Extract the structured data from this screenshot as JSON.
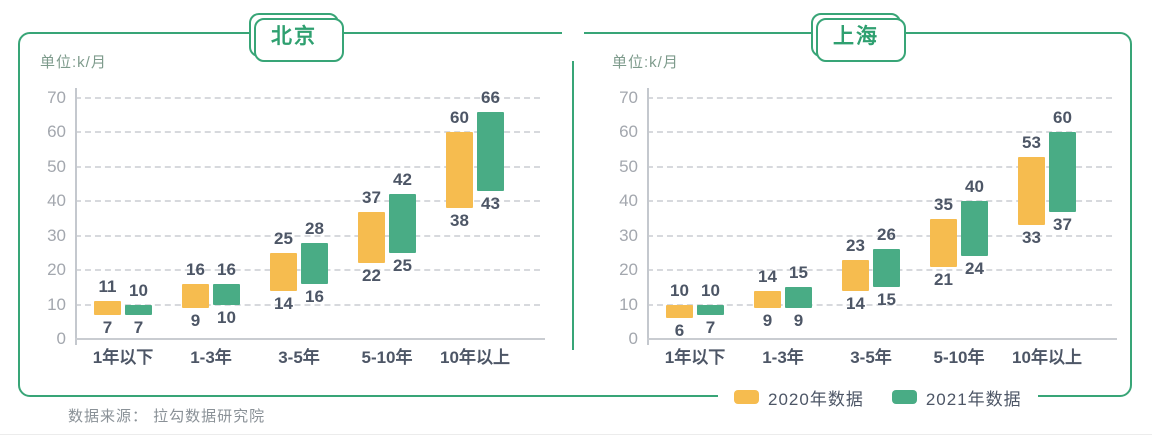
{
  "source": "数据来源： 拉勾数据研究院",
  "colors": {
    "brand_green": "#38A577",
    "bar_yellow": "#F6BC4F",
    "bar_green": "#49AC85",
    "label_dark": "#4D5666",
    "tick_gray": "#A3A7AE"
  },
  "legend": [
    {
      "label": "2020年数据",
      "color": "#F6BC4F"
    },
    {
      "label": "2021年数据",
      "color": "#49AC85"
    }
  ],
  "chart_data": [
    {
      "type": "bar",
      "variant": "floating-range-bars",
      "title": "北京",
      "unit_label": "单位:k/月",
      "categories": [
        "1年以下",
        "1-3年",
        "3-5年",
        "5-10年",
        "10年以上"
      ],
      "series": [
        {
          "name": "2020年数据",
          "color": "#F6BC4F",
          "ranges": [
            [
              7,
              11
            ],
            [
              9,
              16
            ],
            [
              14,
              25
            ],
            [
              22,
              37
            ],
            [
              38,
              60
            ]
          ]
        },
        {
          "name": "2021年数据",
          "color": "#49AC85",
          "ranges": [
            [
              7,
              10
            ],
            [
              10,
              16
            ],
            [
              16,
              28
            ],
            [
              25,
              42
            ],
            [
              43,
              66
            ]
          ]
        }
      ],
      "ylim": [
        0,
        70
      ],
      "y_ticks": [
        0,
        10,
        20,
        30,
        40,
        50,
        60,
        70
      ],
      "grid": "dashed-horizontal",
      "legend_position": "bottom-right-shared"
    },
    {
      "type": "bar",
      "variant": "floating-range-bars",
      "title": "上海",
      "unit_label": "单位:k/月",
      "categories": [
        "1年以下",
        "1-3年",
        "3-5年",
        "5-10年",
        "10年以上"
      ],
      "series": [
        {
          "name": "2020年数据",
          "color": "#F6BC4F",
          "ranges": [
            [
              6,
              10
            ],
            [
              9,
              14
            ],
            [
              14,
              23
            ],
            [
              21,
              35
            ],
            [
              33,
              53
            ]
          ]
        },
        {
          "name": "2021年数据",
          "color": "#49AC85",
          "ranges": [
            [
              7,
              10
            ],
            [
              9,
              15
            ],
            [
              15,
              26
            ],
            [
              24,
              40
            ],
            [
              37,
              60
            ]
          ]
        }
      ],
      "ylim": [
        0,
        70
      ],
      "y_ticks": [
        0,
        10,
        20,
        30,
        40,
        50,
        60,
        70
      ],
      "grid": "dashed-horizontal",
      "legend_position": "bottom-right-shared"
    }
  ]
}
